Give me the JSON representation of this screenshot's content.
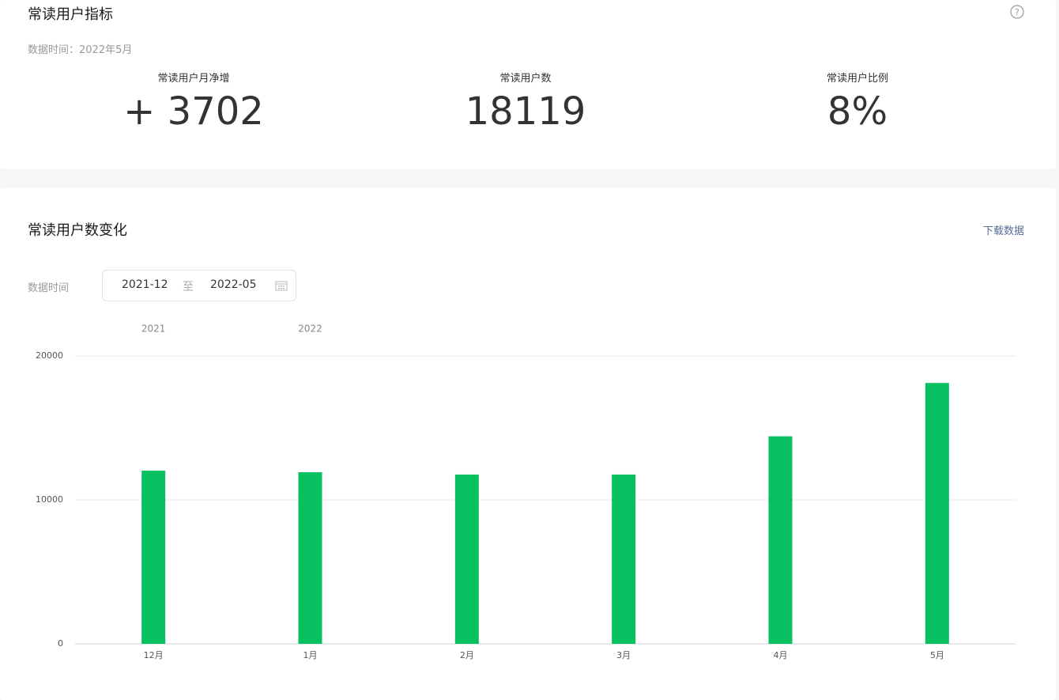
{
  "metrics_card": {
    "title": "常读用户指标",
    "data_time": "数据时间：2022年5月",
    "metrics": [
      {
        "label": "常读用户月净增",
        "value": "+ 3702"
      },
      {
        "label": "常读用户数",
        "value": "18119"
      },
      {
        "label": "常读用户比例",
        "value": "8%"
      }
    ]
  },
  "chart_card": {
    "title": "常读用户数变化",
    "download": "下载数据",
    "date_label": "数据时间",
    "date_start": "2021-12",
    "date_separator": "至",
    "date_end": "2022-05"
  },
  "chart_data": {
    "type": "bar",
    "categories": [
      "12月",
      "1月",
      "2月",
      "3月",
      "4月",
      "5月"
    ],
    "year_labels": [
      "2021",
      "2022",
      null,
      null,
      null,
      null
    ],
    "values": [
      12030,
      11920,
      11760,
      11760,
      14417,
      18119
    ],
    "color": "#07c160",
    "ylim": [
      0,
      20000
    ],
    "yticks": [
      0,
      10000,
      20000
    ],
    "grid": true
  }
}
